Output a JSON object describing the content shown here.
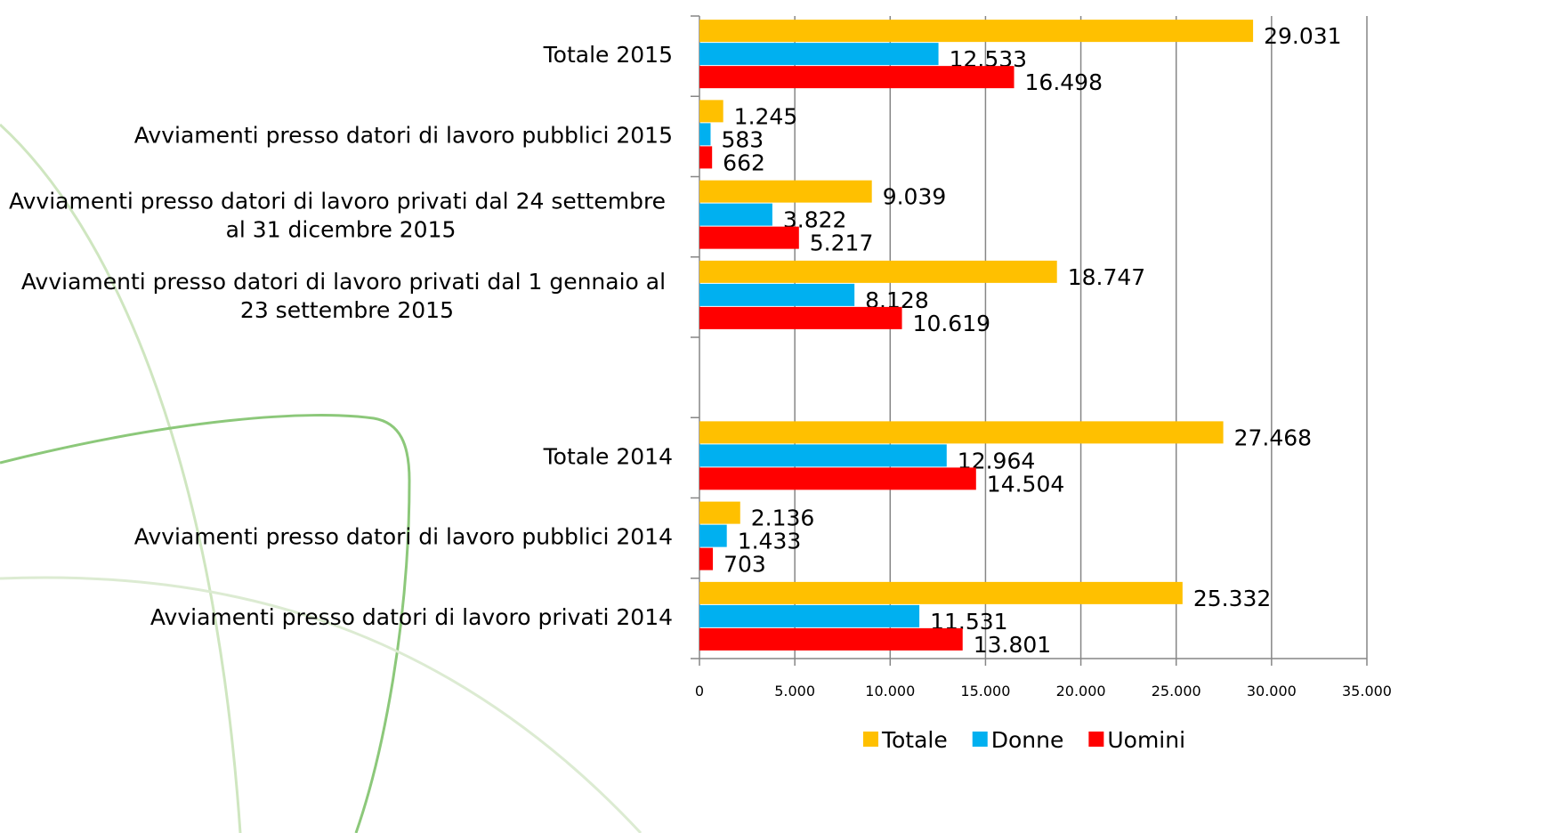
{
  "chart_data": {
    "type": "bar",
    "orientation": "horizontal",
    "categories": [
      "Totale 2015",
      "Avviamenti presso datori di lavoro pubblici 2015",
      "Avviamenti presso datori di lavoro privati dal 24 settembre al 31 dicembre 2015",
      "Avviamenti presso datori di lavoro privati dal 1 gennaio al 23 settembre 2015",
      null,
      "Totale 2014",
      "Avviamenti presso datori di lavoro pubblici 2014",
      "Avviamenti presso datori di lavoro privati 2014"
    ],
    "series": [
      {
        "name": "Totale",
        "color": "#FFC000",
        "values": [
          29031,
          1245,
          9039,
          18747,
          null,
          27468,
          2136,
          25332
        ],
        "value_labels": [
          "29.031",
          "1.245",
          "9.039",
          "18.747",
          null,
          "27.468",
          "2.136",
          "25.332"
        ]
      },
      {
        "name": "Donne",
        "color": "#00B0F0",
        "values": [
          12533,
          583,
          3822,
          8128,
          null,
          12964,
          1433,
          11531
        ],
        "value_labels": [
          "12.533",
          "583",
          "3.822",
          "8.128",
          null,
          "12.964",
          "1.433",
          "11.531"
        ]
      },
      {
        "name": "Uomini",
        "color": "#FF0000",
        "values": [
          16498,
          662,
          5217,
          10619,
          null,
          14504,
          703,
          13801
        ],
        "value_labels": [
          "16.498",
          "662",
          "5.217",
          "10.619",
          null,
          "14.504",
          "703",
          "13.801"
        ]
      }
    ],
    "xlim": [
      0,
      35000
    ],
    "xticks": [
      0,
      {
        "value": 5000,
        "label": "5.000"
      },
      {
        "value": 10000,
        "label": "10.000"
      },
      {
        "value": 15000,
        "label": "15.000"
      },
      {
        "value": 20000,
        "label": "20.000"
      },
      {
        "value": 25000,
        "label": "25.000"
      },
      {
        "value": 30000,
        "label": "30.000"
      },
      {
        "value": 35000,
        "label": "35.000"
      }
    ],
    "grid": true,
    "legend": "bottom"
  }
}
